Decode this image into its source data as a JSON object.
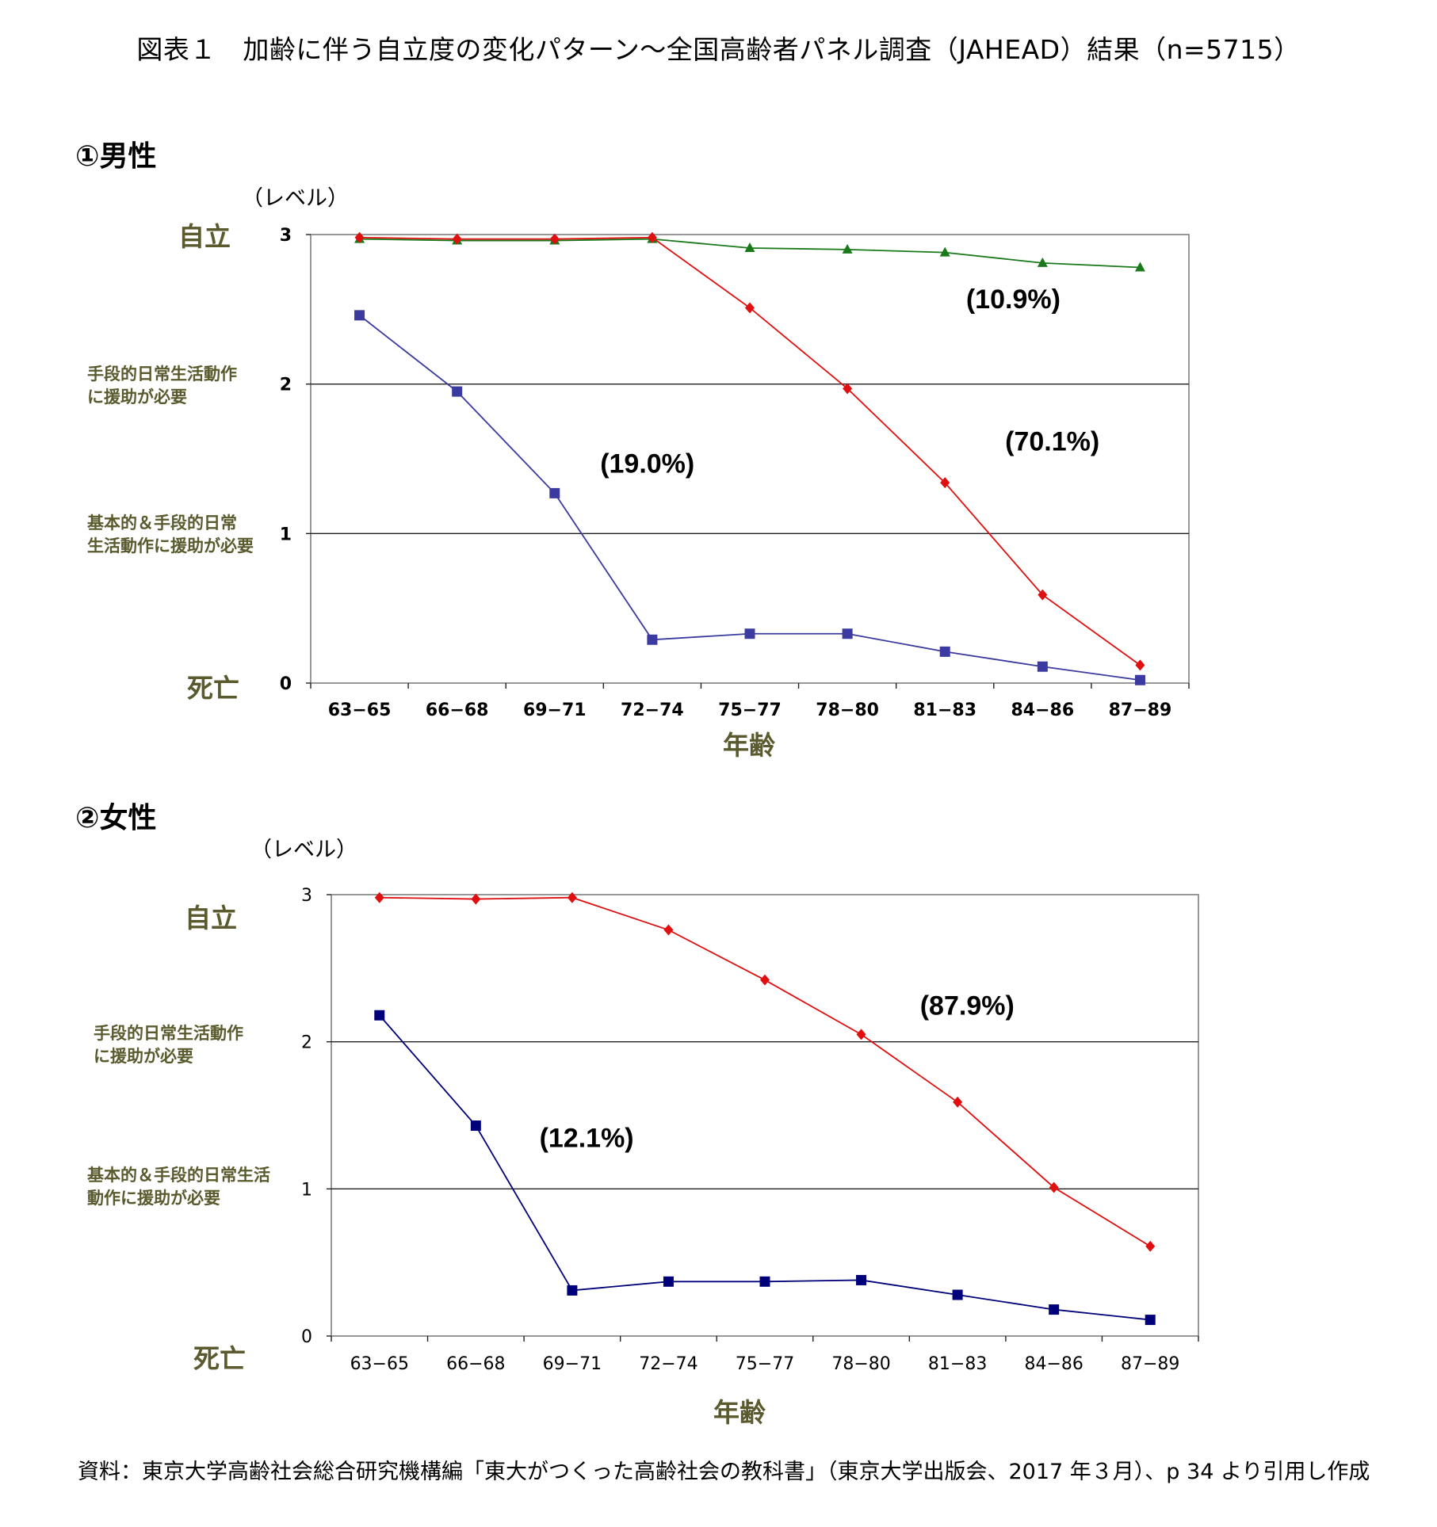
{
  "title": "図表１　加齢に伴う自立度の変化パターン～全国高齢者パネル調査（JAHEAD）結果（n=5715）",
  "source": "資料：東京大学高齢社会総合研究機構編「東大がつくった高齢社会の教科書」（東京大学出版会、2017 年３月）、p 34 より引用し作成",
  "colors": {
    "red": "#e01010",
    "green": "#1a7a1a",
    "blue_male": "#3a3aa0",
    "navy_female": "#00007a",
    "label_olive": "#5a5a2e"
  },
  "chart_data": [
    {
      "type": "line",
      "section_label": "①男性",
      "y_unit": "（レベル）",
      "xlabel": "年齢",
      "categories": [
        "63-65",
        "66-68",
        "69-71",
        "72-74",
        "75-77",
        "78-80",
        "81-83",
        "84-86",
        "87-89"
      ],
      "ylim": [
        0,
        3
      ],
      "yticks": [
        "0",
        "1",
        "2",
        "3"
      ],
      "y_category_labels": {
        "top": "自立",
        "level2": "手段的日常生活動作\nに援助が必要",
        "level1": "基本的＆手段的日常\n生活動作に援助が必要",
        "bottom": "死亡"
      },
      "grid": "horizontal",
      "series": [
        {
          "color": "#1a7a1a",
          "marker": "triangle",
          "values": [
            2.97,
            2.96,
            2.96,
            2.97,
            2.91,
            2.9,
            2.88,
            2.81,
            2.78
          ]
        },
        {
          "color": "#e01010",
          "marker": "diamond",
          "values": [
            2.98,
            2.97,
            2.97,
            2.98,
            2.51,
            1.97,
            1.34,
            0.59,
            0.12
          ]
        },
        {
          "color": "#3a3aa0",
          "marker": "square",
          "values": [
            2.46,
            1.95,
            1.27,
            0.29,
            0.33,
            0.33,
            0.21,
            0.11,
            0.02
          ]
        }
      ],
      "annotations": [
        {
          "text": "(10.9%)",
          "x": 6.7,
          "y": 2.57
        },
        {
          "text": "(70.1%)",
          "x": 7.1,
          "y": 1.62
        },
        {
          "text": "(19.0%)",
          "x": 2.95,
          "y": 1.47
        }
      ]
    },
    {
      "type": "line",
      "section_label": "②女性",
      "y_unit": "（レベル）",
      "xlabel": "年齢",
      "categories": [
        "63-65",
        "66-68",
        "69-71",
        "72-74",
        "75-77",
        "78-80",
        "81-83",
        "84-86",
        "87-89"
      ],
      "ylim": [
        0,
        3
      ],
      "yticks": [
        "0",
        "1",
        "2",
        "3"
      ],
      "y_category_labels": {
        "top": "自立",
        "level2": "手段的日常生活動作\nに援助が必要",
        "level1": "基本的＆手段的日常生活\n動作に援助が必要",
        "bottom": "死亡"
      },
      "grid": "horizontal",
      "series": [
        {
          "color": "#e01010",
          "marker": "diamond",
          "values": [
            2.98,
            2.97,
            2.98,
            2.76,
            2.42,
            2.05,
            1.59,
            1.01,
            0.61
          ]
        },
        {
          "color": "#00007a",
          "marker": "square",
          "values": [
            2.18,
            1.43,
            0.31,
            0.37,
            0.37,
            0.38,
            0.28,
            0.18,
            0.11
          ]
        }
      ],
      "annotations": [
        {
          "text": "(87.9%)",
          "x": 6.1,
          "y": 2.25
        },
        {
          "text": "(12.1%)",
          "x": 2.15,
          "y": 1.35
        }
      ]
    }
  ]
}
